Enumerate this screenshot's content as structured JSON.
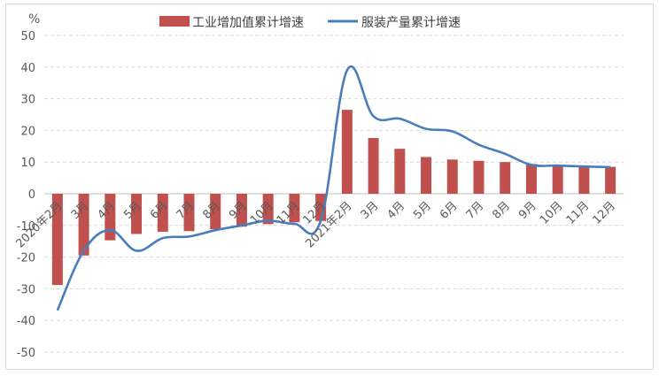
{
  "chart_data": {
    "type": "bar",
    "y_unit": "%",
    "ylim": [
      -50,
      50
    ],
    "y_ticks": [
      50,
      40,
      30,
      20,
      10,
      0,
      -10,
      -20,
      -30,
      -40,
      -50
    ],
    "grid": true,
    "legend_position": "top",
    "categories": [
      "2020年2月",
      "3月",
      "4月",
      "5月",
      "6月",
      "7月",
      "8月",
      "9月",
      "10月",
      "11月",
      "12月",
      "2021年2月",
      "3月",
      "4月",
      "5月",
      "6月",
      "7月",
      "8月",
      "9月",
      "10月",
      "11月",
      "12月"
    ],
    "series": [
      {
        "name": "工业增加值累计增速",
        "type": "bar",
        "color": "#c0504d",
        "values": [
          -28.8,
          -19.5,
          -14.7,
          -12.7,
          -12.0,
          -11.8,
          -11.2,
          -10.4,
          -9.6,
          -9.0,
          -8.6,
          26.5,
          17.6,
          14.2,
          11.6,
          10.8,
          10.4,
          10.0,
          9.4,
          8.9,
          8.6,
          8.5
        ]
      },
      {
        "name": "服装产量累计增速",
        "type": "line",
        "color": "#4a7ebb",
        "values": [
          -36.8,
          -18.0,
          -11.5,
          -18.0,
          -14.0,
          -13.5,
          -11.5,
          -10.0,
          -8.5,
          -9.5,
          -8.5,
          39.0,
          24.5,
          23.7,
          20.5,
          19.7,
          15.5,
          12.6,
          9.1,
          8.9,
          8.6,
          8.4
        ]
      }
    ]
  }
}
